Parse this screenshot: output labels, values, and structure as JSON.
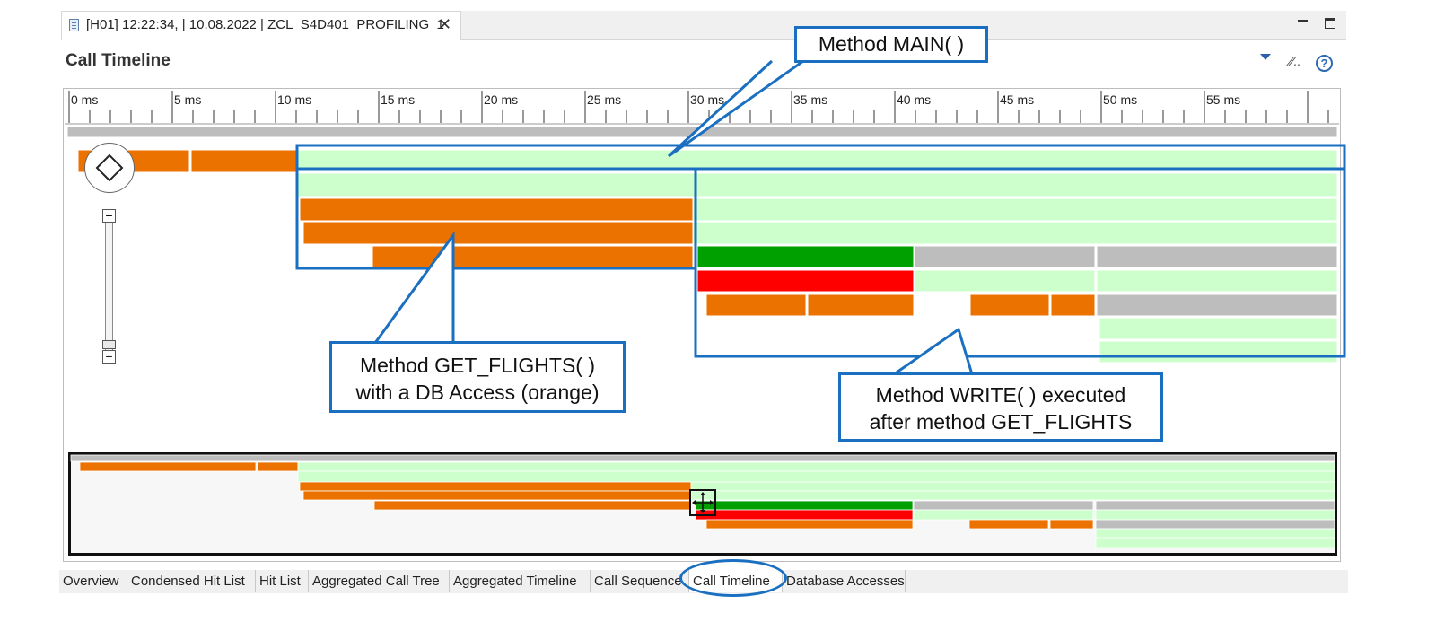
{
  "window": {
    "tab_title": "[H01] 12:22:34, | 10.08.2022 | ZCL_S4D401_PROFILING_1",
    "close_glyph": "✕"
  },
  "view": {
    "title": "Call Timeline",
    "filter_glyph": "∕∕..",
    "help_glyph": "?"
  },
  "ruler": {
    "labels": [
      "0 ms",
      "5 ms",
      "10 ms",
      "15 ms",
      "20 ms",
      "25 ms",
      "30 ms",
      "35 ms",
      "40 ms",
      "45 ms",
      "50 ms",
      "55 ms"
    ]
  },
  "zoom": {
    "in_glyph": "+",
    "out_glyph": "−"
  },
  "legend_colors": {
    "db_access": "#ec7200",
    "method": "#ccffcc",
    "green": "#00a000",
    "red": "#ff0000",
    "gray": "#bdbdbd",
    "highlight": "#1a6fc1"
  },
  "callouts": {
    "main": "Method MAIN( )",
    "get_flights_line1": "Method GET_FLIGHTS( )",
    "get_flights_line2": "with a DB Access (orange)",
    "write_line1": "Method WRITE( ) executed",
    "write_line2": "after method GET_FLIGHTS"
  },
  "bottom_tabs": [
    "Overview",
    "Condensed Hit List",
    "Hit List",
    "Aggregated Call Tree",
    "Aggregated Timeline",
    "Call Sequence",
    "Call Timeline",
    "Database Accesses"
  ],
  "active_tab": "Call Timeline"
}
